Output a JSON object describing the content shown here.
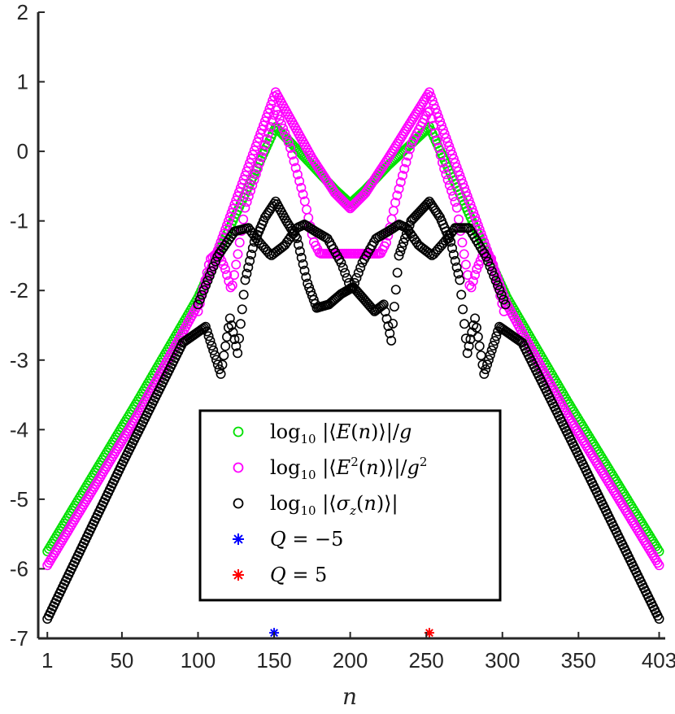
{
  "chart_data": {
    "type": "scatter",
    "xlabel": "n",
    "ylabel": "",
    "xlim": [
      -5,
      407
    ],
    "ylim": [
      -7,
      2
    ],
    "xticks": [
      1,
      50,
      100,
      150,
      200,
      250,
      300,
      350,
      403
    ],
    "xtick_labels": [
      "1",
      "50",
      "100",
      "150",
      "200",
      "250",
      "300",
      "350",
      "403"
    ],
    "yticks": [
      2,
      1,
      0,
      -1,
      -2,
      -3,
      -4,
      -5,
      -6,
      -7
    ],
    "ytick_labels": [
      "2",
      "1",
      "0",
      "-1",
      "-2",
      "-3",
      "-4",
      "-5",
      "-6",
      "-7"
    ],
    "grid": false,
    "legend_position": "bottom-center",
    "series": [
      {
        "name": "log₁₀ |⟨E(n)⟩|/g",
        "marker": "circle",
        "color": "#00e000",
        "count": 403,
        "anchors": [
          [
            1,
            -5.75
          ],
          [
            60,
            -3.6
          ],
          [
            100,
            -2.1
          ],
          [
            151,
            0.35
          ],
          [
            175,
            -0.2
          ],
          [
            190,
            -0.55
          ],
          [
            200,
            -0.75
          ],
          [
            210,
            -0.55
          ],
          [
            225,
            -0.2
          ],
          [
            252,
            0.35
          ],
          [
            303,
            -2.1
          ],
          [
            343,
            -3.6
          ],
          [
            403,
            -5.75
          ]
        ]
      },
      {
        "name": "log₁₀ |⟨E²(n)⟩|/g²",
        "marker": "circle",
        "color": "#ff00ff",
        "count": 403,
        "anchors": [
          [
            1,
            -5.95
          ],
          [
            60,
            -3.8
          ],
          [
            100,
            -2.2
          ],
          [
            151,
            0.85
          ],
          [
            175,
            -0.1
          ],
          [
            190,
            -0.6
          ],
          [
            200,
            -0.82
          ],
          [
            210,
            -0.6
          ],
          [
            225,
            -0.1
          ],
          [
            252,
            0.85
          ],
          [
            303,
            -2.2
          ],
          [
            343,
            -3.8
          ],
          [
            403,
            -5.95
          ]
        ],
        "secondary_count": 170,
        "secondary_anchors": [
          [
            100,
            -2.3
          ],
          [
            108,
            -1.55
          ],
          [
            113,
            -1.45
          ],
          [
            118,
            -1.7
          ],
          [
            122,
            -2.0
          ],
          [
            126,
            -1.5
          ],
          [
            131,
            -0.8
          ],
          [
            140,
            -0.2
          ],
          [
            151,
            0.6
          ],
          [
            160,
            0.1
          ],
          [
            170,
            -0.7
          ],
          [
            176,
            -1.3
          ],
          [
            180,
            -1.47
          ],
          [
            200,
            -1.47
          ],
          [
            220,
            -1.47
          ],
          [
            224,
            -1.3
          ],
          [
            230,
            -0.7
          ],
          [
            240,
            0.1
          ],
          [
            252,
            0.6
          ],
          [
            261,
            -0.2
          ],
          [
            270,
            -0.8
          ],
          [
            275,
            -1.5
          ],
          [
            279,
            -2.0
          ],
          [
            283,
            -1.7
          ],
          [
            288,
            -1.45
          ],
          [
            293,
            -1.55
          ],
          [
            301,
            -2.3
          ]
        ]
      },
      {
        "name": "log₁₀ |⟨σz(n)⟩|",
        "marker": "circle",
        "color": "#000000",
        "count": 403,
        "anchors": [
          [
            1,
            -6.72
          ],
          [
            50,
            -4.5
          ],
          [
            90,
            -2.75
          ],
          [
            105,
            -2.52
          ],
          [
            115,
            -3.2
          ],
          [
            121,
            -2.4
          ],
          [
            126,
            -2.9
          ],
          [
            131,
            -1.85
          ],
          [
            137,
            -1.3
          ],
          [
            144,
            -0.95
          ],
          [
            151,
            -0.72
          ],
          [
            158,
            -1.0
          ],
          [
            165,
            -1.25
          ],
          [
            172,
            -1.9
          ],
          [
            178,
            -2.25
          ],
          [
            186,
            -2.2
          ],
          [
            194,
            -2.05
          ],
          [
            202,
            -1.95
          ],
          [
            210,
            -2.15
          ],
          [
            216,
            -2.3
          ],
          [
            222,
            -2.2
          ],
          [
            227,
            -2.72
          ],
          [
            232,
            -1.5
          ],
          [
            240,
            -1.0
          ],
          [
            252,
            -0.72
          ],
          [
            259,
            -0.95
          ],
          [
            266,
            -1.3
          ],
          [
            272,
            -1.85
          ],
          [
            277,
            -2.9
          ],
          [
            282,
            -2.4
          ],
          [
            288,
            -3.2
          ],
          [
            298,
            -2.52
          ],
          [
            313,
            -2.75
          ],
          [
            353,
            -4.5
          ],
          [
            403,
            -6.72
          ]
        ],
        "secondary_count": 160,
        "secondary_anchors": [
          [
            100,
            -2.2
          ],
          [
            113,
            -1.5
          ],
          [
            124,
            -1.15
          ],
          [
            133,
            -1.1
          ],
          [
            140,
            -1.3
          ],
          [
            148,
            -1.5
          ],
          [
            157,
            -1.35
          ],
          [
            165,
            -1.1
          ],
          [
            170,
            -1.05
          ],
          [
            177,
            -1.15
          ],
          [
            185,
            -1.25
          ],
          [
            194,
            -1.6
          ],
          [
            201,
            -2.0
          ],
          [
            208,
            -1.6
          ],
          [
            217,
            -1.25
          ],
          [
            225,
            -1.15
          ],
          [
            232,
            -1.05
          ],
          [
            237,
            -1.1
          ],
          [
            245,
            -1.35
          ],
          [
            254,
            -1.5
          ],
          [
            262,
            -1.3
          ],
          [
            269,
            -1.1
          ],
          [
            278,
            -1.1
          ],
          [
            289,
            -1.5
          ],
          [
            302,
            -2.2
          ]
        ]
      },
      {
        "name": "Q = −5",
        "marker": "asterisk",
        "color": "#0000ff",
        "points": [
          [
            150,
            -6.92
          ]
        ]
      },
      {
        "name": "Q = 5",
        "marker": "asterisk",
        "color": "#ff0000",
        "points": [
          [
            252,
            -6.92
          ]
        ]
      }
    ]
  }
}
